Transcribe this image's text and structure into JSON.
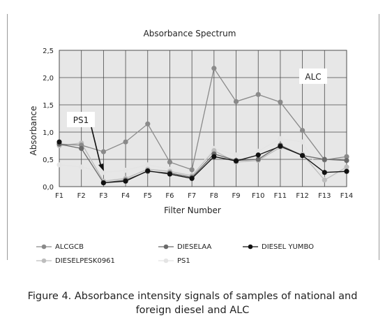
{
  "chart_data": {
    "type": "line",
    "title": "Absorbance Spectrum",
    "xlabel": "Filter Number",
    "ylabel": "Absorbance",
    "categories": [
      "F1",
      "F2",
      "F3",
      "F4",
      "F5",
      "F6",
      "F7",
      "F8",
      "F9",
      "F10",
      "F11",
      "F12",
      "F13",
      "F14"
    ],
    "ylim": [
      0,
      2.5
    ],
    "yticks": [
      "0,0",
      "0,5",
      "1,0",
      "1,5",
      "2,0",
      "2,5"
    ],
    "grid": true,
    "legend_position": "bottom",
    "series": [
      {
        "name": "ALCGCB",
        "color": "#8a8a8a",
        "values": [
          0.78,
          0.76,
          0.64,
          0.82,
          1.15,
          0.45,
          0.31,
          2.17,
          1.56,
          1.69,
          1.55,
          1.03,
          0.49,
          0.55
        ]
      },
      {
        "name": "DIESELAA",
        "color": "#6a6a6a",
        "values": [
          0.78,
          0.7,
          0.07,
          0.12,
          0.28,
          0.25,
          0.17,
          0.6,
          0.48,
          0.5,
          0.76,
          0.57,
          0.5,
          0.48
        ]
      },
      {
        "name": "DIESEL YUMBO",
        "color": "#111111",
        "values": [
          0.82,
          null,
          0.07,
          0.1,
          0.29,
          0.23,
          0.15,
          0.55,
          0.47,
          0.58,
          0.74,
          0.57,
          0.26,
          0.28
        ]
      },
      {
        "name": "DIESELPESK0961",
        "color": "#bdbdbd",
        "values": [
          0.75,
          0.8,
          0.1,
          0.15,
          0.32,
          0.28,
          0.2,
          0.66,
          0.45,
          0.48,
          0.72,
          0.59,
          0.12,
          0.36
        ]
      },
      {
        "name": "PS1",
        "color": "#e4e4e4",
        "values": [
          0.4,
          0.36,
          0.26,
          0.3,
          0.4,
          0.32,
          0.21,
          0.7,
          0.58,
          0.65,
          0.88,
          0.82,
          0.13,
          0.3
        ]
      }
    ],
    "annotations": [
      {
        "text": "ALC"
      },
      {
        "text": "PS1"
      }
    ]
  },
  "caption": {
    "line1": "Figure 4.  Absorbance intensity signals of samples of national and",
    "line2": "foreign diesel and ALC"
  }
}
